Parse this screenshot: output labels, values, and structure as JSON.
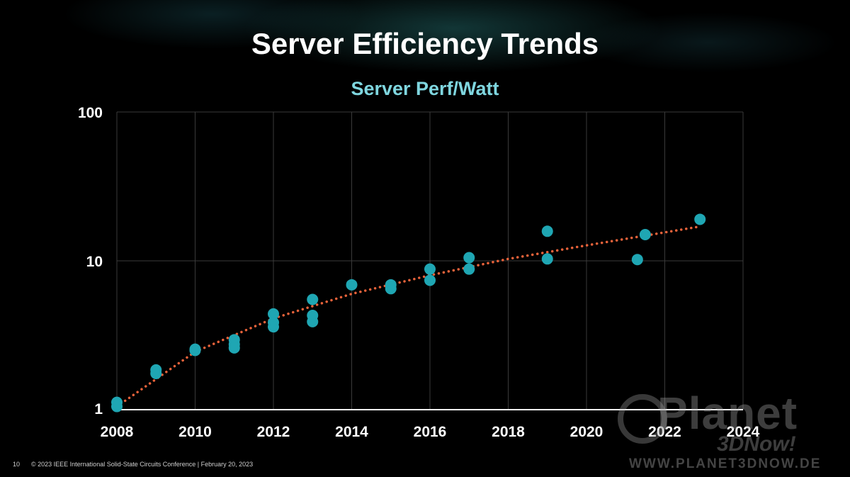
{
  "slide": {
    "title": "Server Efficiency Trends",
    "subtitle": "Server Perf/Watt"
  },
  "footer": {
    "page_number": "10",
    "copyright": "© 2023 IEEE International Solid-State Circuits Conference  |  February 20, 2023"
  },
  "watermark": {
    "brand": "Planet",
    "brand_sub": "3DNow!",
    "url": "WWW.PLANET3DNOW.DE"
  },
  "chart_data": {
    "type": "scatter",
    "title": "Server Perf/Watt",
    "xlabel": "",
    "ylabel": "",
    "x_scale": "linear",
    "y_scale": "log",
    "xlim": [
      2008,
      2024
    ],
    "ylim": [
      1,
      100
    ],
    "x_ticks": [
      2008,
      2010,
      2012,
      2014,
      2016,
      2018,
      2020,
      2022,
      2024
    ],
    "y_ticks": [
      1,
      10,
      100
    ],
    "grid": true,
    "legend": "none",
    "colors": {
      "points": "#1fa6b3",
      "trendline": "#e8623a",
      "grid": "#3a3a3a",
      "axis": "#ffffff",
      "text": "#ffffff"
    },
    "points": [
      {
        "x": 2008.0,
        "y": 1.12
      },
      {
        "x": 2008.0,
        "y": 1.05
      },
      {
        "x": 2009.0,
        "y": 1.75
      },
      {
        "x": 2009.0,
        "y": 1.85
      },
      {
        "x": 2010.0,
        "y": 2.5
      },
      {
        "x": 2010.0,
        "y": 2.55
      },
      {
        "x": 2011.0,
        "y": 2.95
      },
      {
        "x": 2011.0,
        "y": 2.75
      },
      {
        "x": 2011.0,
        "y": 2.6
      },
      {
        "x": 2012.0,
        "y": 4.4
      },
      {
        "x": 2012.0,
        "y": 3.85
      },
      {
        "x": 2012.0,
        "y": 3.6
      },
      {
        "x": 2013.0,
        "y": 5.5
      },
      {
        "x": 2013.0,
        "y": 4.3
      },
      {
        "x": 2013.0,
        "y": 3.9
      },
      {
        "x": 2014.0,
        "y": 6.9
      },
      {
        "x": 2015.0,
        "y": 6.9
      },
      {
        "x": 2015.0,
        "y": 6.5
      },
      {
        "x": 2016.0,
        "y": 8.8
      },
      {
        "x": 2016.0,
        "y": 7.4
      },
      {
        "x": 2017.0,
        "y": 10.5
      },
      {
        "x": 2017.0,
        "y": 8.8
      },
      {
        "x": 2019.0,
        "y": 15.8
      },
      {
        "x": 2019.0,
        "y": 10.3
      },
      {
        "x": 2021.3,
        "y": 10.2
      },
      {
        "x": 2021.5,
        "y": 15.0
      },
      {
        "x": 2022.9,
        "y": 19.0
      }
    ],
    "trendline": {
      "style": "dotted",
      "points": [
        {
          "x": 2008.0,
          "y": 1.05
        },
        {
          "x": 2010.0,
          "y": 2.45
        },
        {
          "x": 2012.0,
          "y": 4.1
        },
        {
          "x": 2014.0,
          "y": 6.0
        },
        {
          "x": 2016.0,
          "y": 8.0
        },
        {
          "x": 2018.0,
          "y": 10.3
        },
        {
          "x": 2020.0,
          "y": 12.7
        },
        {
          "x": 2022.9,
          "y": 17.0
        }
      ]
    }
  }
}
